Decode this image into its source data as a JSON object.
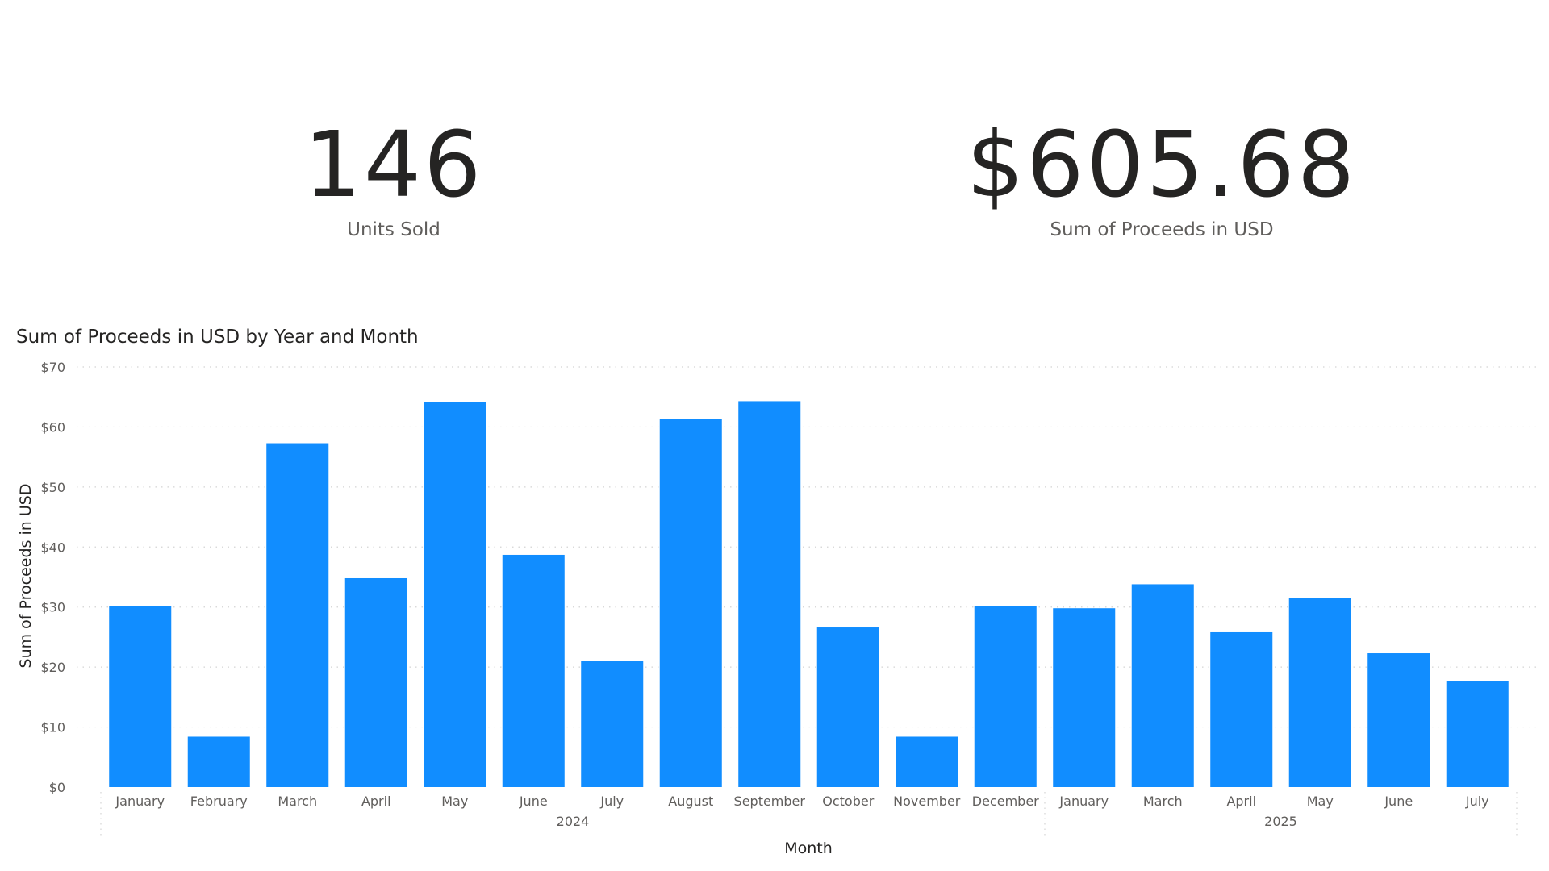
{
  "kpis": {
    "units_sold": {
      "value": "146",
      "label": "Units Sold"
    },
    "proceeds": {
      "value": "$605.68",
      "label": "Sum of Proceeds in USD"
    }
  },
  "colors": {
    "bar": "#118DFF",
    "grid": "#d4d4d4",
    "text": "#252423",
    "muted": "#605e5c"
  },
  "chart_data": {
    "type": "bar",
    "title": "Sum of Proceeds in USD by Year and Month",
    "xlabel": "Month",
    "ylabel": "Sum of Proceeds in USD",
    "ylim": [
      0,
      70
    ],
    "yticks": [
      0,
      10,
      20,
      30,
      40,
      50,
      60,
      70
    ],
    "ytick_labels": [
      "$0",
      "$10",
      "$20",
      "$30",
      "$40",
      "$50",
      "$60",
      "$70"
    ],
    "grid": true,
    "groups": [
      {
        "name": "2024",
        "count": 12
      },
      {
        "name": "2025",
        "count": 6
      }
    ],
    "categories": [
      "January",
      "February",
      "March",
      "April",
      "May",
      "June",
      "July",
      "August",
      "September",
      "October",
      "November",
      "December",
      "January",
      "March",
      "April",
      "May",
      "June",
      "July"
    ],
    "values": [
      30.1,
      8.4,
      57.3,
      34.8,
      64.1,
      38.7,
      21.0,
      61.3,
      64.3,
      26.6,
      8.4,
      30.2,
      29.8,
      33.8,
      25.8,
      31.5,
      22.3,
      17.6
    ]
  }
}
